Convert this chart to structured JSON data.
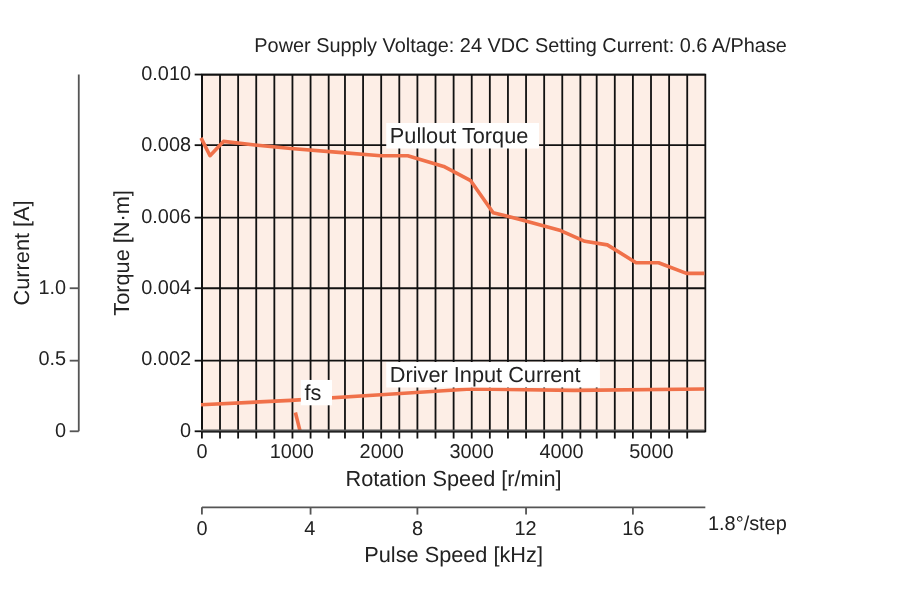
{
  "chart_data": {
    "type": "line",
    "title": "Power Supply Voltage: 24 VDC  Setting Current: 0.6 A/Phase",
    "xlabel": "Rotation Speed [r/min]",
    "ylabel": "Torque [N·m]",
    "y2label": "Current [A]",
    "x2label": "Pulse Speed [kHz]",
    "annotations": [
      "1.8°/step"
    ],
    "series": [
      {
        "name": "Pullout Torque",
        "color": "#f0714a",
        "x": [
          0,
          100,
          250,
          600,
          1000,
          1500,
          2000,
          2300,
          2700,
          3000,
          3250,
          3570,
          4000,
          4270,
          4520,
          4840,
          5090,
          5400,
          5600
        ],
        "values": [
          0.0082,
          0.0077,
          0.0081,
          0.008,
          0.0079,
          0.0078,
          0.0077,
          0.0077,
          0.0074,
          0.007,
          0.0061,
          0.0059,
          0.0056,
          0.0053,
          0.0052,
          0.0047,
          0.0047,
          0.0044,
          0.0044
        ]
      },
      {
        "name": "Driver Input Current",
        "color": "#f0714a",
        "axis": "y2",
        "x": [
          0,
          1000,
          2000,
          3000,
          4150,
          5600
        ],
        "values": [
          0.18,
          0.21,
          0.25,
          0.29,
          0.28,
          0.29
        ]
      },
      {
        "name": "fs",
        "color": "#f0714a",
        "x": [
          1050,
          1100
        ],
        "values": [
          0.0005,
          0
        ]
      }
    ],
    "xlim": [
      0,
      5600
    ],
    "xticks": [
      0,
      {
        "value": 200,
        "label": null
      },
      {
        "value": 400,
        "label": null
      },
      {
        "value": 600,
        "label": null
      },
      {
        "value": 800,
        "label": null
      },
      1000,
      {
        "value": 1200,
        "label": null
      },
      {
        "value": 1400,
        "label": null
      },
      {
        "value": 1600,
        "label": null
      },
      {
        "value": 1800,
        "label": null
      },
      2000,
      {
        "value": 2200,
        "label": null
      },
      {
        "value": 2400,
        "label": null
      },
      {
        "value": 2600,
        "label": null
      },
      {
        "value": 2800,
        "label": null
      },
      3000,
      {
        "value": 3200,
        "label": null
      },
      {
        "value": 3400,
        "label": null
      },
      {
        "value": 3600,
        "label": null
      },
      {
        "value": 3800,
        "label": null
      },
      4000,
      {
        "value": 4200,
        "label": null
      },
      {
        "value": 4400,
        "label": null
      },
      {
        "value": 4600,
        "label": null
      },
      {
        "value": 4800,
        "label": null
      },
      5000,
      {
        "value": 5200,
        "label": null
      },
      {
        "value": 5400,
        "label": null
      }
    ],
    "ylim": [
      0,
      0.01
    ],
    "yticks": [
      0,
      0.002,
      0.004,
      0.006,
      0.008,
      {
        "value": 0.01,
        "label": "0.010"
      }
    ],
    "y2lim": [
      0,
      2.5
    ],
    "y2ticks": [
      0,
      0.5,
      {
        "value": 1,
        "label": "1.0"
      }
    ],
    "x2lim": [
      0,
      18.67
    ],
    "x2ticks": [
      0,
      4,
      8,
      12,
      16
    ],
    "grid": true,
    "marker": "none",
    "line_style": "solid"
  }
}
